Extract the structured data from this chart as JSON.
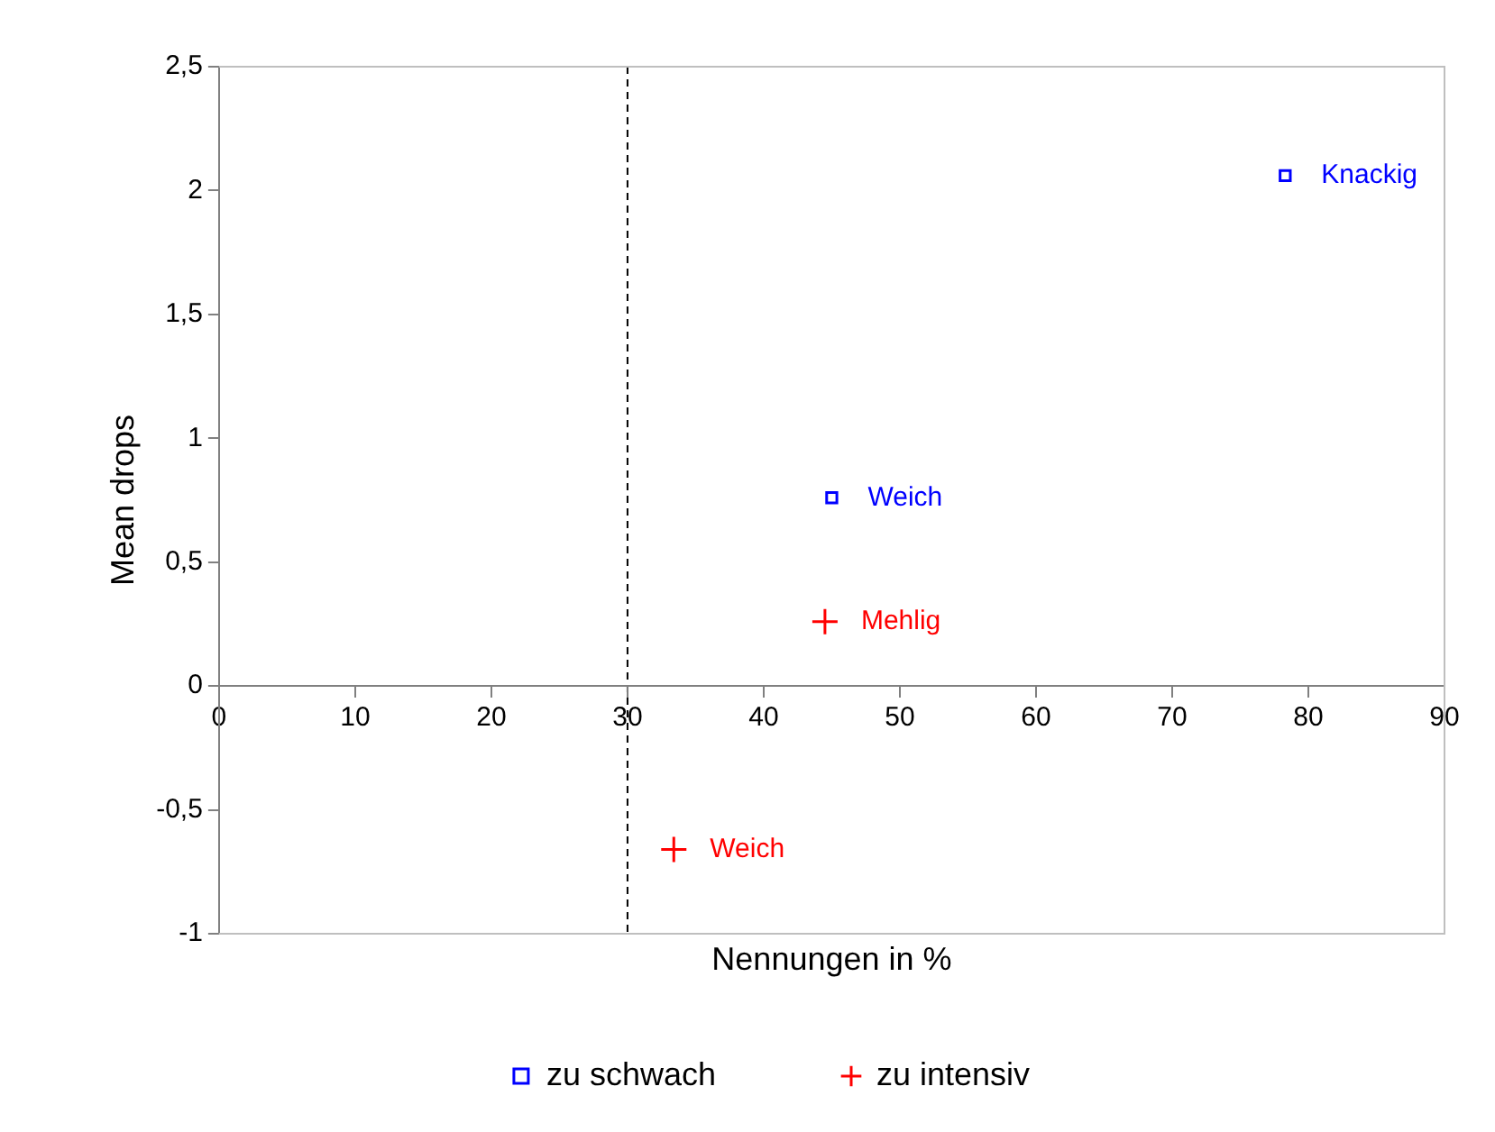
{
  "chart_data": {
    "type": "scatter",
    "xlabel": "Nennungen in %",
    "ylabel": "Mean drops",
    "xlim": [
      0,
      90
    ],
    "xticks": [
      0,
      10,
      20,
      30,
      40,
      50,
      60,
      70,
      80,
      90
    ],
    "ylim": [
      -1,
      2.5
    ],
    "yticks": [
      {
        "value": -1,
        "label": "-1"
      },
      {
        "value": -0.5,
        "label": "-0,5"
      },
      {
        "value": 0,
        "label": "0"
      },
      {
        "value": 0.5,
        "label": "0,5"
      },
      {
        "value": 1,
        "label": "1"
      },
      {
        "value": 1.5,
        "label": "1,5"
      },
      {
        "value": 2,
        "label": "2"
      },
      {
        "value": 2.5,
        "label": "2,5"
      }
    ],
    "series": [
      {
        "name": "zu schwach",
        "color": "#0000ff",
        "marker": "square",
        "x": [
          78.3,
          45
        ],
        "values": [
          2.06,
          0.76
        ]
      },
      {
        "name": "zu intensiv",
        "color": "#ff0000",
        "marker": "cross",
        "x": [
          44.5,
          33.4
        ],
        "values": [
          0.26,
          -0.66
        ]
      }
    ],
    "annotations": [
      {
        "text": "Knackig",
        "x": 78.3,
        "y": 2.06
      },
      {
        "text": "Weich",
        "x": 45,
        "y": 0.76
      },
      {
        "text": "Mehlig",
        "x": 44.5,
        "y": 0.26
      },
      {
        "text": "Weich",
        "x": 33.4,
        "y": -0.66
      }
    ],
    "ref_lines": [
      {
        "axis": "x",
        "value": 30,
        "line_style": "dashed",
        "color": "#000000"
      }
    ],
    "grid": false,
    "legend": "bottom"
  }
}
